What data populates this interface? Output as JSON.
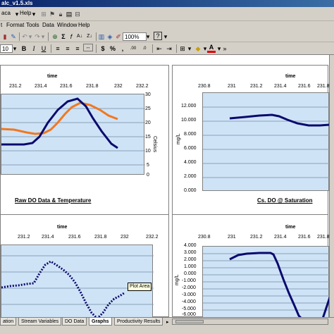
{
  "window": {
    "title": "alc_v1.5.xls"
  },
  "menubar": {
    "row1_items": [
      "aca",
      "Help"
    ],
    "row2_items": [
      "t",
      "Format",
      "Tools",
      "Data",
      "Window",
      "Help"
    ]
  },
  "toolbar": {
    "zoom": "100%",
    "font_size": "10",
    "bold": "B",
    "italic": "I",
    "underline": "U",
    "currency": "$",
    "percent": "%",
    "comma": ","
  },
  "charts": [
    {
      "id": "raw",
      "title": "Raw DO Data & Temperature",
      "x_title": "time",
      "x_ticks": [
        "231.2",
        "231.4",
        "231.6",
        "231.8",
        "232",
        "232.2"
      ],
      "y2_ticks": [
        "30",
        "25",
        "20",
        "15",
        "10",
        "5",
        "0"
      ],
      "y2_label": "Celsius"
    },
    {
      "id": "cs",
      "title": "Cs. DO @ Saturation",
      "x_title": "time",
      "x_ticks": [
        "230.8",
        "231",
        "231.2",
        "231.4",
        "231.6",
        "231.8"
      ],
      "y_ticks": [
        "12.000",
        "10.000",
        "8.000",
        "6.000",
        "4.000",
        "2.000",
        "0.000"
      ],
      "y_label": "mg/L"
    },
    {
      "id": "third",
      "x_title": "time",
      "x_ticks": [
        "231.2",
        "231.4",
        "231.6",
        "231.8",
        "232",
        "232.2"
      ]
    },
    {
      "id": "fourth",
      "x_title": "time",
      "x_ticks": [
        "230.8",
        "231",
        "231.2",
        "231.4",
        "231.6",
        "231.8"
      ],
      "y_ticks": [
        "4.000",
        "3.000",
        "2.000",
        "1.000",
        "0.000",
        "-1.000",
        "-2.000",
        "-3.000",
        "-4.000",
        "-5.000",
        "-6.000"
      ],
      "y_label": "mg/L"
    }
  ],
  "tooltip": "Plot Area",
  "sheet_tabs": [
    "ation",
    "Stream Variables",
    "DO Data",
    "Graphs",
    "Productivity Results"
  ],
  "active_tab": "Graphs",
  "colors": {
    "do_series": "#0a0a6e",
    "temp_series": "#f07820",
    "plot_bg": "#cfe3f6"
  }
}
